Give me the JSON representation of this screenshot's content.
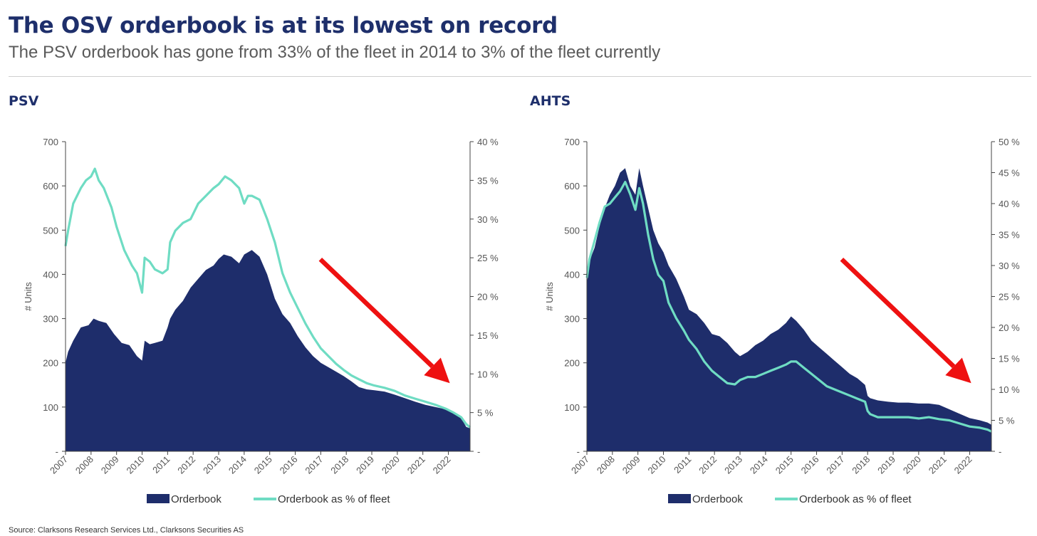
{
  "header": {
    "title": "The OSV orderbook is at its lowest on record",
    "subtitle": "The PSV orderbook has gone from 33% of the fleet in 2014 to 3% of the fleet currently"
  },
  "footer": {
    "source": "Source: Clarksons Research Services Ltd., Clarksons Securities AS"
  },
  "colors": {
    "area": "#1e2d6b",
    "line": "#6fdcc3",
    "arrow": "#ee1111",
    "axis": "#444444"
  },
  "chart_data": [
    {
      "type": "area",
      "title": "PSV",
      "ylabel": "# Units",
      "ylim": [
        0,
        700
      ],
      "y2lim": [
        0,
        40
      ],
      "y_ticks": [
        "-",
        "100",
        "200",
        "300",
        "400",
        "500",
        "600",
        "700"
      ],
      "y2_ticks": [
        "-",
        "5 %",
        "10 %",
        "15 %",
        "20 %",
        "25 %",
        "30 %",
        "35 %",
        "40 %"
      ],
      "x_ticks": [
        "2007",
        "2008",
        "2009",
        "2010",
        "2011",
        "2012",
        "2013",
        "2014",
        "2015",
        "2016",
        "2017",
        "2018",
        "2019",
        "2020",
        "2021",
        "2022"
      ],
      "xlim": [
        2007,
        2022.85
      ],
      "annotation": "downward arrow",
      "series": [
        {
          "name": "Orderbook",
          "axis": "left",
          "x": [
            2007,
            2007.1,
            2007.3,
            2007.6,
            2007.9,
            2008.1,
            2008.3,
            2008.6,
            2008.9,
            2009.2,
            2009.5,
            2009.8,
            2010.0,
            2010.1,
            2010.3,
            2010.5,
            2010.8,
            2011.0,
            2011.1,
            2011.3,
            2011.6,
            2011.9,
            2012.2,
            2012.5,
            2012.8,
            2013.0,
            2013.2,
            2013.5,
            2013.8,
            2014.0,
            2014.3,
            2014.6,
            2014.9,
            2015.2,
            2015.5,
            2015.8,
            2016.1,
            2016.4,
            2016.7,
            2017.0,
            2017.3,
            2017.6,
            2017.9,
            2018.2,
            2018.5,
            2018.8,
            2019.1,
            2019.5,
            2019.9,
            2020.3,
            2020.7,
            2021.1,
            2021.5,
            2021.9,
            2022.2,
            2022.5,
            2022.7,
            2022.85
          ],
          "values": [
            200,
            225,
            250,
            280,
            285,
            300,
            295,
            290,
            265,
            245,
            240,
            215,
            205,
            250,
            242,
            245,
            250,
            280,
            300,
            320,
            340,
            370,
            390,
            410,
            420,
            435,
            445,
            440,
            425,
            445,
            455,
            440,
            400,
            345,
            310,
            290,
            260,
            235,
            215,
            200,
            190,
            180,
            170,
            158,
            145,
            140,
            138,
            135,
            128,
            120,
            112,
            105,
            100,
            95,
            88,
            75,
            55,
            52
          ]
        },
        {
          "name": "Orderbook as % of fleet",
          "axis": "right",
          "x": [
            2007,
            2007.1,
            2007.3,
            2007.6,
            2007.8,
            2008.0,
            2008.15,
            2008.3,
            2008.5,
            2008.8,
            2009.0,
            2009.3,
            2009.6,
            2009.8,
            2010.0,
            2010.1,
            2010.3,
            2010.5,
            2010.8,
            2011.0,
            2011.1,
            2011.3,
            2011.6,
            2011.9,
            2012.2,
            2012.5,
            2012.8,
            2013.0,
            2013.25,
            2013.5,
            2013.8,
            2014.0,
            2014.15,
            2014.3,
            2014.6,
            2014.9,
            2015.2,
            2015.5,
            2015.8,
            2016.1,
            2016.4,
            2016.7,
            2017.0,
            2017.3,
            2017.6,
            2017.9,
            2018.2,
            2018.5,
            2018.8,
            2019.1,
            2019.5,
            2019.9,
            2020.3,
            2020.7,
            2021.1,
            2021.5,
            2021.9,
            2022.2,
            2022.5,
            2022.7,
            2022.85
          ],
          "values": [
            26.5,
            28.5,
            32,
            34,
            35,
            35.5,
            36.5,
            35,
            34,
            31.5,
            29,
            26,
            24,
            23,
            20.5,
            25,
            24.5,
            23.5,
            23,
            23.5,
            27,
            28.5,
            29.5,
            30,
            32,
            33,
            34,
            34.5,
            35.5,
            35,
            34,
            32,
            33,
            33,
            32.5,
            30,
            27,
            23,
            20.5,
            18.5,
            16.5,
            14.8,
            13.3,
            12.3,
            11.3,
            10.5,
            9.8,
            9.3,
            8.8,
            8.5,
            8.2,
            7.8,
            7.2,
            6.8,
            6.4,
            6.0,
            5.5,
            5.0,
            4.4,
            3.5,
            3.1
          ]
        }
      ]
    },
    {
      "type": "area",
      "title": "AHTS",
      "ylabel": "# Units",
      "ylim": [
        0,
        700
      ],
      "y2lim": [
        0,
        50
      ],
      "y_ticks": [
        "-",
        "100",
        "200",
        "300",
        "400",
        "500",
        "600",
        "700"
      ],
      "y2_ticks": [
        "-",
        "5 %",
        "10 %",
        "15 %",
        "20 %",
        "25 %",
        "30 %",
        "35 %",
        "40 %",
        "45 %",
        "50 %"
      ],
      "x_ticks": [
        "2007",
        "2008",
        "2009",
        "2010",
        "2011",
        "2012",
        "2013",
        "2014",
        "2015",
        "2016",
        "2017",
        "2018",
        "2019",
        "2020",
        "2021",
        "2022"
      ],
      "xlim": [
        2007,
        2022.85
      ],
      "annotation": "downward arrow",
      "series": [
        {
          "name": "Orderbook",
          "axis": "left",
          "x": [
            2007,
            2007.1,
            2007.3,
            2007.5,
            2007.7,
            2007.9,
            2008.1,
            2008.3,
            2008.5,
            2008.7,
            2008.9,
            2009.05,
            2009.2,
            2009.4,
            2009.6,
            2009.8,
            2010.0,
            2010.2,
            2010.5,
            2010.8,
            2011.0,
            2011.3,
            2011.6,
            2011.9,
            2012.2,
            2012.5,
            2012.8,
            2013.0,
            2013.3,
            2013.6,
            2013.9,
            2014.2,
            2014.5,
            2014.8,
            2015.0,
            2015.2,
            2015.5,
            2015.8,
            2016.1,
            2016.4,
            2016.7,
            2017.0,
            2017.3,
            2017.6,
            2017.9,
            2018.0,
            2018.1,
            2018.4,
            2018.8,
            2019.2,
            2019.6,
            2020.0,
            2020.4,
            2020.8,
            2021.2,
            2021.6,
            2022.0,
            2022.4,
            2022.7,
            2022.85
          ],
          "values": [
            380,
            430,
            460,
            510,
            550,
            580,
            600,
            630,
            640,
            600,
            580,
            640,
            600,
            550,
            500,
            470,
            450,
            420,
            390,
            350,
            320,
            310,
            290,
            265,
            260,
            245,
            225,
            215,
            225,
            240,
            250,
            265,
            275,
            290,
            305,
            295,
            275,
            250,
            235,
            220,
            205,
            190,
            175,
            165,
            150,
            125,
            120,
            115,
            112,
            110,
            110,
            108,
            108,
            105,
            95,
            85,
            75,
            70,
            65,
            60
          ]
        },
        {
          "name": "Orderbook as % of fleet",
          "axis": "right",
          "x": [
            2007,
            2007.1,
            2007.3,
            2007.5,
            2007.7,
            2007.9,
            2008.1,
            2008.3,
            2008.5,
            2008.7,
            2008.9,
            2009.05,
            2009.2,
            2009.4,
            2009.6,
            2009.8,
            2010.0,
            2010.2,
            2010.5,
            2010.8,
            2011.0,
            2011.3,
            2011.6,
            2011.9,
            2012.2,
            2012.5,
            2012.8,
            2013.0,
            2013.3,
            2013.6,
            2013.9,
            2014.2,
            2014.5,
            2014.8,
            2015.0,
            2015.2,
            2015.5,
            2015.8,
            2016.1,
            2016.4,
            2016.7,
            2017.0,
            2017.3,
            2017.6,
            2017.9,
            2018.0,
            2018.1,
            2018.4,
            2018.8,
            2019.2,
            2019.6,
            2020.0,
            2020.4,
            2020.8,
            2021.2,
            2021.6,
            2022.0,
            2022.4,
            2022.7,
            2022.85
          ],
          "values": [
            28,
            31,
            34,
            37,
            39.5,
            40,
            41,
            42,
            43.5,
            41.5,
            39,
            42.5,
            40,
            35,
            31,
            28.5,
            27.5,
            24,
            21.5,
            19.5,
            18,
            16.5,
            14.5,
            13,
            12,
            11,
            10.8,
            11.5,
            12,
            12,
            12.5,
            13,
            13.5,
            14,
            14.5,
            14.5,
            13.5,
            12.5,
            11.5,
            10.5,
            10,
            9.5,
            9,
            8.5,
            8,
            6.5,
            6,
            5.5,
            5.5,
            5.5,
            5.5,
            5.3,
            5.5,
            5.2,
            5,
            4.5,
            4,
            3.8,
            3.5,
            3.2
          ]
        }
      ]
    }
  ]
}
